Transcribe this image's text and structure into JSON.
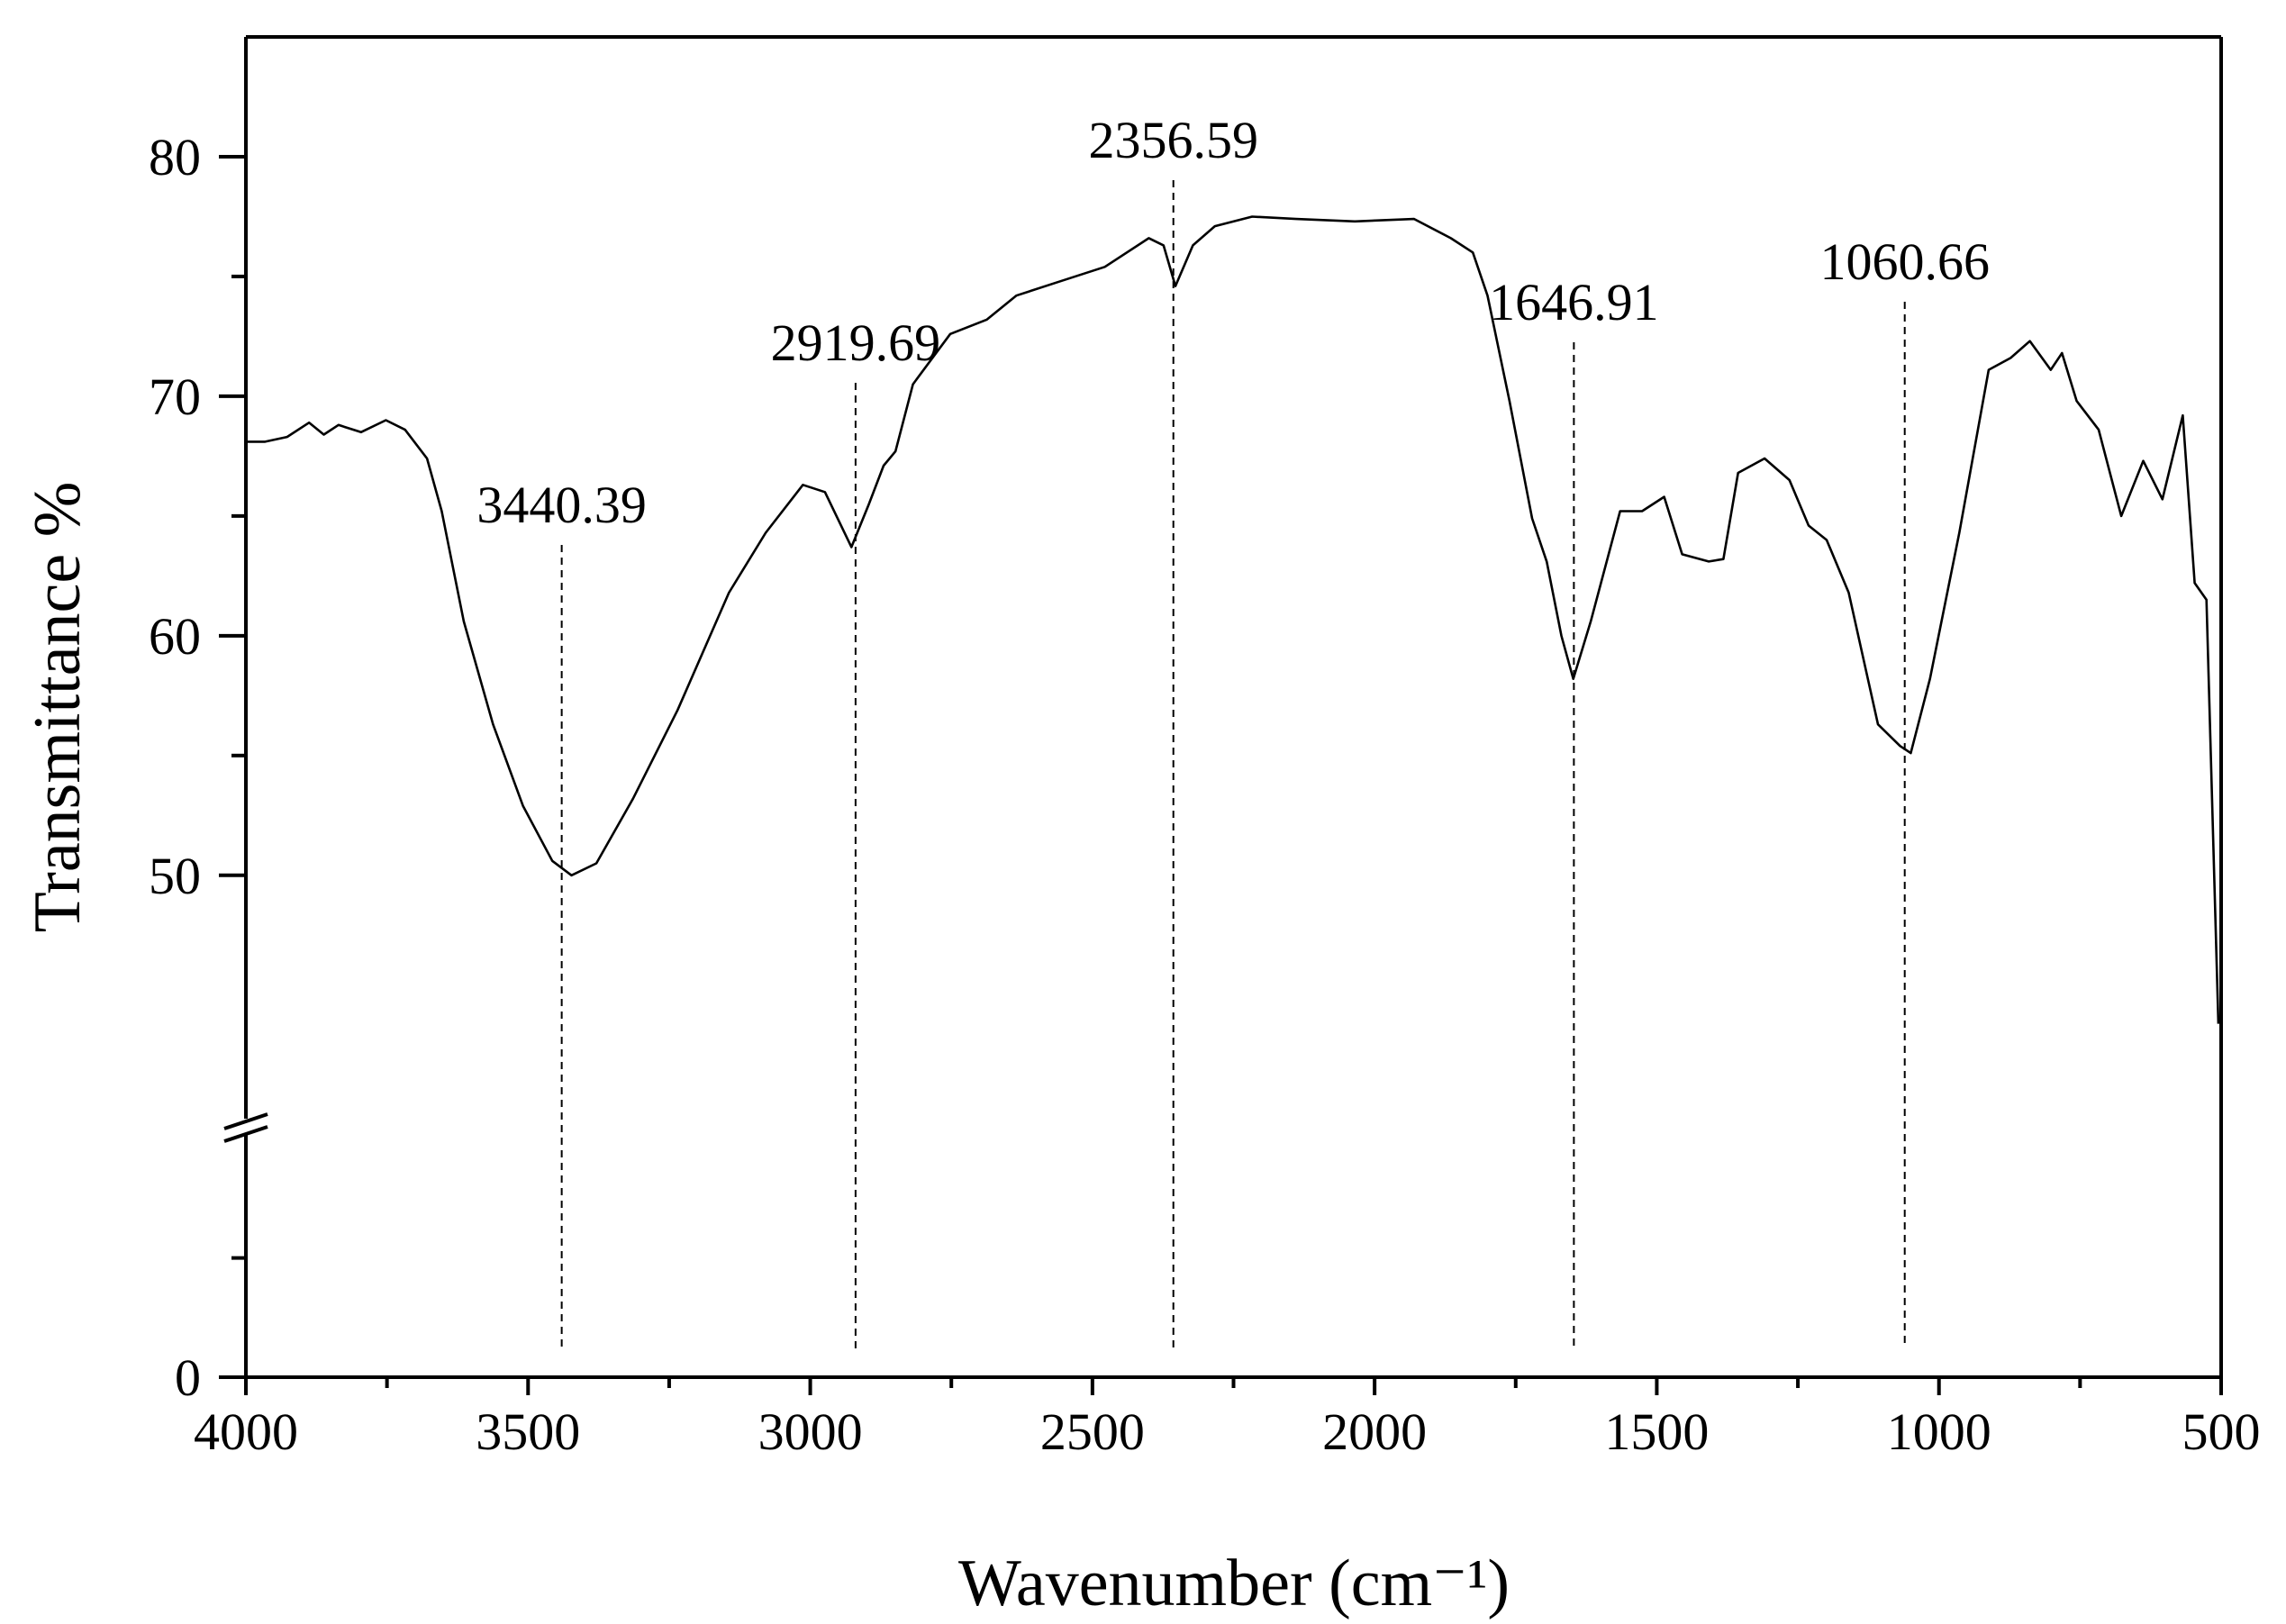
{
  "chart_data": {
    "type": "line",
    "xlabel": "Wavenumber (cm⁻¹)",
    "ylabel": "Transmittance %",
    "xlim": [
      4000,
      500
    ],
    "xticks": [
      4000,
      3500,
      3000,
      2500,
      2000,
      1500,
      1000,
      500
    ],
    "xminor": [
      3750,
      3250,
      2750,
      2250,
      1750,
      1250,
      750
    ],
    "ylim": [
      0,
      85
    ],
    "ybreak": [
      10.5,
      39.5
    ],
    "yticks": [
      0,
      50,
      60,
      70,
      80
    ],
    "yminor": [
      5,
      55,
      65,
      75
    ],
    "color": "#000000",
    "peaks": [
      3440.39,
      2919.69,
      2356.59,
      1646.91,
      1060.66
    ],
    "x": [
      4000,
      3966,
      3927,
      3888,
      3862,
      3836,
      3796,
      3752,
      3718,
      3679,
      3653,
      3614,
      3562,
      3509,
      3457,
      3423,
      3379,
      3314,
      3235,
      3144,
      3079,
      3013,
      2974,
      2927,
      2896,
      2870,
      2849,
      2818,
      2752,
      2687,
      2635,
      2557,
      2478,
      2400,
      2374,
      2353,
      2322,
      2283,
      2217,
      2139,
      2035,
      1930,
      1865,
      1826,
      1800,
      1761,
      1721,
      1695,
      1669,
      1648,
      1617,
      1565,
      1526,
      1487,
      1455,
      1408,
      1382,
      1356,
      1309,
      1265,
      1231,
      1199,
      1160,
      1108,
      1069,
      1050,
      1016,
      964,
      912,
      873,
      839,
      802,
      782,
      756,
      717,
      677,
      638,
      604,
      568,
      547,
      526,
      505
    ],
    "values": [
      68.1,
      68.1,
      68.3,
      68.9,
      68.4,
      68.8,
      68.5,
      69.0,
      68.6,
      67.4,
      65.2,
      60.6,
      56.3,
      52.9,
      50.6,
      50.0,
      50.5,
      53.2,
      56.9,
      61.8,
      64.3,
      66.3,
      66.0,
      63.7,
      65.5,
      67.1,
      67.7,
      70.5,
      72.6,
      73.2,
      74.2,
      74.8,
      75.4,
      76.6,
      76.3,
      74.6,
      76.3,
      77.1,
      77.5,
      77.4,
      77.3,
      77.4,
      76.6,
      76.0,
      74.2,
      69.8,
      64.9,
      63.1,
      60.0,
      58.2,
      60.6,
      65.2,
      65.2,
      65.8,
      63.4,
      63.1,
      63.2,
      66.8,
      67.4,
      66.5,
      64.6,
      64.0,
      61.8,
      56.3,
      55.4,
      55.1,
      58.2,
      64.3,
      71.1,
      71.6,
      72.3,
      71.1,
      71.8,
      69.8,
      68.6,
      65.0,
      67.3,
      65.7,
      69.2,
      62.2,
      61.5,
      43.8
    ]
  }
}
